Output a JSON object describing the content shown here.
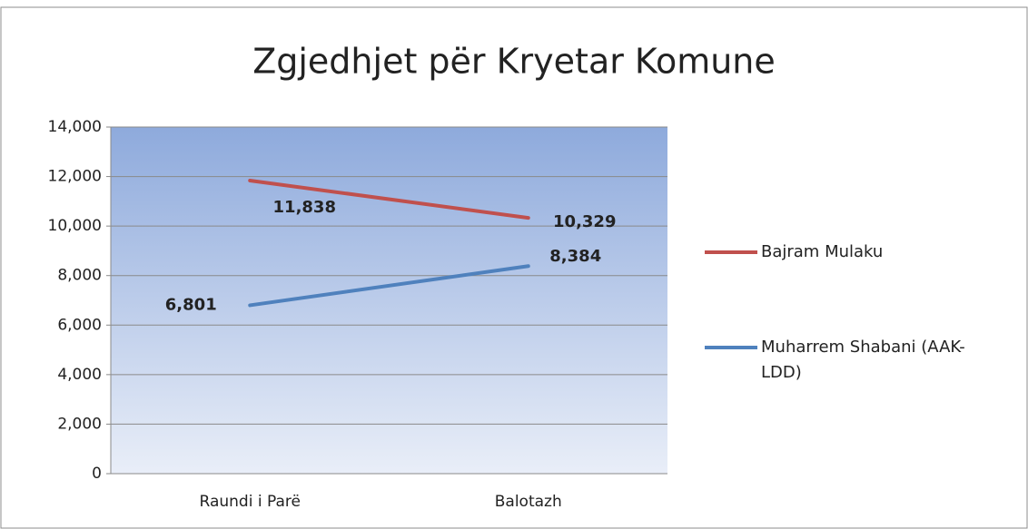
{
  "chart_data": {
    "type": "line",
    "title": "Zgjedhjet për Kryetar Komune",
    "categories": [
      "Raundi i Parë",
      "Balotazh"
    ],
    "series": [
      {
        "name": "Bajram Mulaku",
        "color": "#c0504d",
        "values": [
          11838,
          10329
        ],
        "value_labels": [
          "11,838",
          "10,329"
        ]
      },
      {
        "name": "Muharrem Shabani (AAK-LDD)",
        "color": "#4f81bd",
        "values": [
          6801,
          8384
        ],
        "value_labels": [
          "6,801",
          "8,384"
        ]
      }
    ],
    "ylim": [
      0,
      14000
    ],
    "yticks": [
      0,
      {
        "value": 2000,
        "label": "2,000"
      },
      {
        "value": 4000,
        "label": "4,000"
      },
      {
        "value": 6000,
        "label": "6,000"
      },
      {
        "value": 8000,
        "label": "8,000"
      },
      {
        "value": 10000,
        "label": "10,000"
      },
      {
        "value": 12000,
        "label": "12,000"
      },
      {
        "value": 14000,
        "label": "14,000"
      }
    ],
    "grid": true,
    "legend": "right"
  }
}
